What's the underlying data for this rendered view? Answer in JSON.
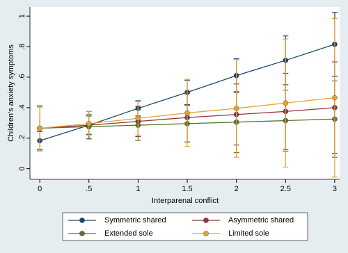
{
  "chart_data": {
    "type": "line",
    "y_label": "Children's anxiety symptoms",
    "x_label": "Interparenal conflict",
    "x": [
      0,
      0.5,
      1,
      1.5,
      2,
      2.5,
      3
    ],
    "xlim": [
      -0.1,
      3.05
    ],
    "ylim": [
      -0.07,
      1.06
    ],
    "xticks": [
      0,
      {
        "value": 0.5,
        "label": ".5"
      },
      1,
      1.5,
      2,
      2.5,
      3
    ],
    "yticks": [
      0,
      {
        "value": 0.2,
        "label": ".2"
      },
      {
        "value": 0.4,
        "label": ".4"
      },
      {
        "value": 0.6,
        "label": ".6"
      },
      {
        "value": 0.8,
        "label": ".8"
      },
      1
    ],
    "series": [
      {
        "name": "Symmetric shared",
        "color": "#1a476f",
        "values": [
          0.183,
          0.285,
          0.395,
          0.5,
          0.61,
          0.71,
          0.815
        ],
        "errors": [
          0.06,
          0.06,
          0.05,
          0.08,
          0.11,
          0.16,
          0.21
        ]
      },
      {
        "name": "Asymmetric shared",
        "color": "#90353b",
        "values": [
          0.265,
          0.285,
          0.31,
          0.335,
          0.355,
          0.375,
          0.4
        ],
        "errors": [
          0.15,
          0.09,
          0.1,
          0.16,
          0.2,
          0.25,
          0.3
        ]
      },
      {
        "name": "Extended sole",
        "color": "#55752f",
        "values": [
          0.265,
          0.275,
          0.285,
          0.295,
          0.305,
          0.315,
          0.325
        ],
        "errors": [
          0.14,
          0.08,
          0.1,
          0.12,
          0.2,
          0.2,
          0.25
        ]
      },
      {
        "name": "Limited sole",
        "color": "#e8a033",
        "values": [
          0.265,
          0.295,
          0.33,
          0.365,
          0.395,
          0.43,
          0.465
        ],
        "errors": [
          0.15,
          0.08,
          0.11,
          0.22,
          0.32,
          0.42,
          0.52
        ]
      }
    ]
  }
}
